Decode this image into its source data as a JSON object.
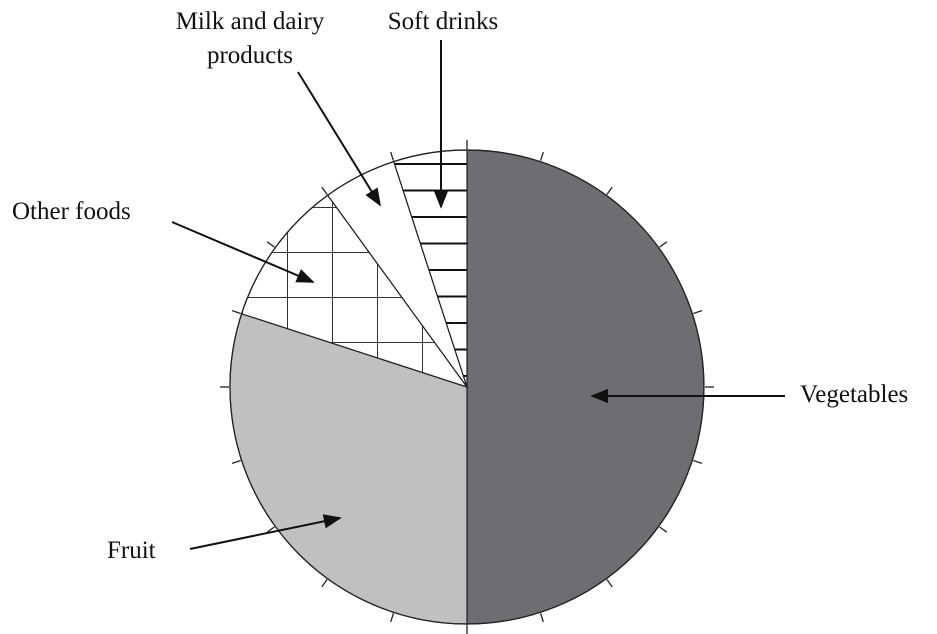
{
  "chart_data": {
    "type": "pie",
    "labels": [
      "Vegetables",
      "Fruit",
      "Other foods",
      "Milk and dairy products",
      "Soft drinks"
    ],
    "values": [
      50,
      30,
      10,
      5,
      5
    ],
    "colors": [
      "#6d6e71",
      "#bfc0c2",
      "#ffffff",
      "#ffffff",
      "#ffffff"
    ],
    "patterns": [
      null,
      null,
      "grid",
      null,
      "horizontal-lines"
    ]
  }
}
